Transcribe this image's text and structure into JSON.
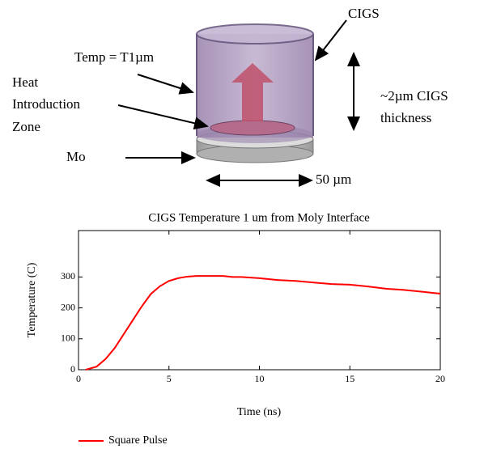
{
  "diagram": {
    "cigs": "CIGS",
    "temp": "Temp = T1µm",
    "heat_zone": [
      "Heat",
      "Introduction",
      "Zone"
    ],
    "mo": "Mo",
    "thickness": [
      "~2µm CIGS",
      "thickness"
    ],
    "width": "50 µm"
  },
  "chart_data": {
    "type": "line",
    "title": "CIGS Temperature 1 um from Moly Interface",
    "x_label": "Time (ns)",
    "y_label": "Temperature (C)",
    "xlim": [
      0,
      20
    ],
    "xticks": [
      0,
      5,
      10,
      15,
      20
    ],
    "ylim": [
      0,
      450
    ],
    "yticks": [
      0,
      100,
      200,
      300
    ],
    "grid": false,
    "legend": "bottom-left",
    "series": [
      {
        "name": "Square Pulse",
        "color": "#ff0000",
        "x": [
          0.4,
          1,
          1.5,
          2,
          2.5,
          3,
          3.5,
          4,
          4.5,
          5,
          5.5,
          6,
          6.5,
          7,
          8,
          8.5,
          9,
          10,
          11,
          12,
          13,
          14,
          15,
          16,
          17,
          18,
          19,
          20
        ],
        "values": [
          0,
          10,
          35,
          70,
          115,
          160,
          205,
          245,
          270,
          287,
          296,
          301,
          303,
          303,
          303,
          300,
          300,
          296,
          290,
          287,
          282,
          277,
          275,
          269,
          262,
          258,
          252,
          246
        ]
      }
    ]
  }
}
